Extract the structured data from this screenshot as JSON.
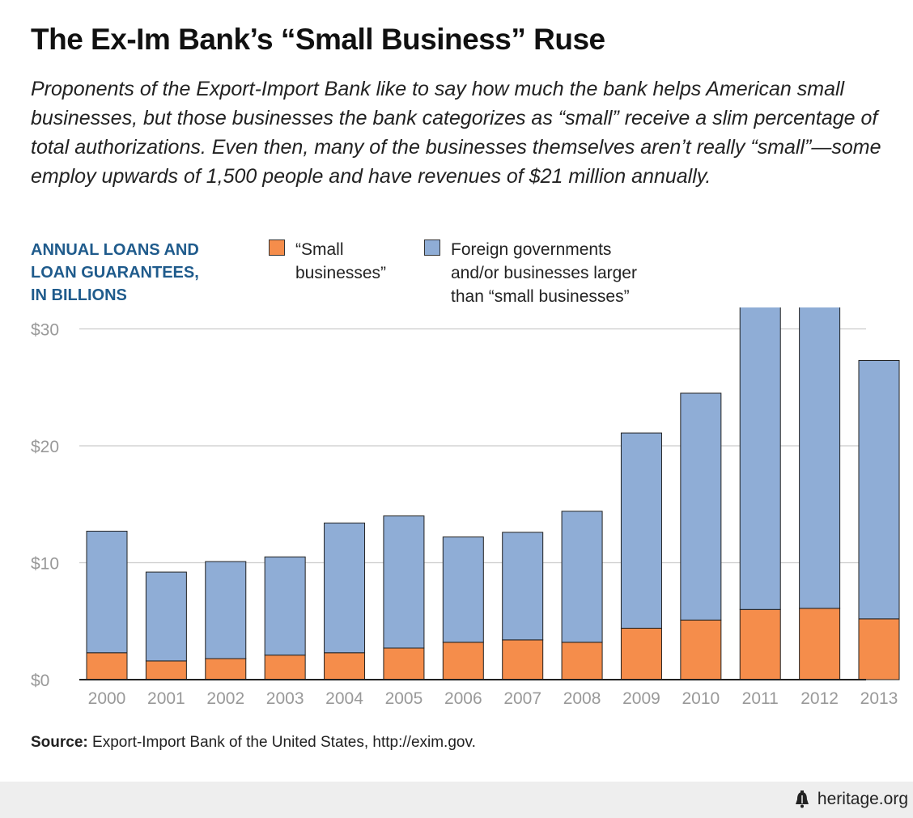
{
  "title": "The Ex-Im Bank’s “Small Business” Ruse",
  "subtitle": "Proponents of the Export-Import Bank like to say how much the bank helps American small businesses, but those businesses the bank categorizes as “small” receive a slim percentage of total authorizations. Even then, many of the businesses themselves aren’t really “small”—some employ upwards of 1,500 people and have revenues of $21 million annually.",
  "source_label": "Source:",
  "source_text": " Export-Import Bank of the United States, http://exim.gov.",
  "brand": "heritage.org",
  "brand_icon": "liberty-bell-icon",
  "colors": {
    "small": "#f58d4b",
    "large": "#8fadd6",
    "grid": "#cccccc",
    "label_blue": "#1f5b8c"
  },
  "chart_data": {
    "type": "bar",
    "stacked": true,
    "ylabel": "ANNUAL LOANS AND\nLOAN GUARANTEES,\nIN BILLIONS",
    "ylim": [
      0,
      35
    ],
    "yticks": [
      "$0",
      "$10",
      "$20",
      "$30"
    ],
    "ytick_values": [
      0,
      10,
      20,
      30
    ],
    "grid": true,
    "legend_placement": "top",
    "categories": [
      "2000",
      "2001",
      "2002",
      "2003",
      "2004",
      "2005",
      "2006",
      "2007",
      "2008",
      "2009",
      "2010",
      "2011",
      "2012",
      "2013"
    ],
    "series": [
      {
        "name": "“Small\nbusinesses”",
        "values": [
          2.3,
          1.6,
          1.8,
          2.1,
          2.3,
          2.7,
          3.2,
          3.4,
          3.2,
          4.4,
          5.1,
          6.0,
          6.1,
          5.2
        ]
      },
      {
        "name": "Foreign governments\nand/or businesses larger\nthan “small businesses”",
        "values": [
          10.4,
          7.6,
          8.3,
          8.4,
          11.1,
          11.3,
          9.0,
          9.2,
          11.2,
          16.7,
          19.4,
          26.3,
          29.3,
          22.1
        ]
      }
    ]
  }
}
